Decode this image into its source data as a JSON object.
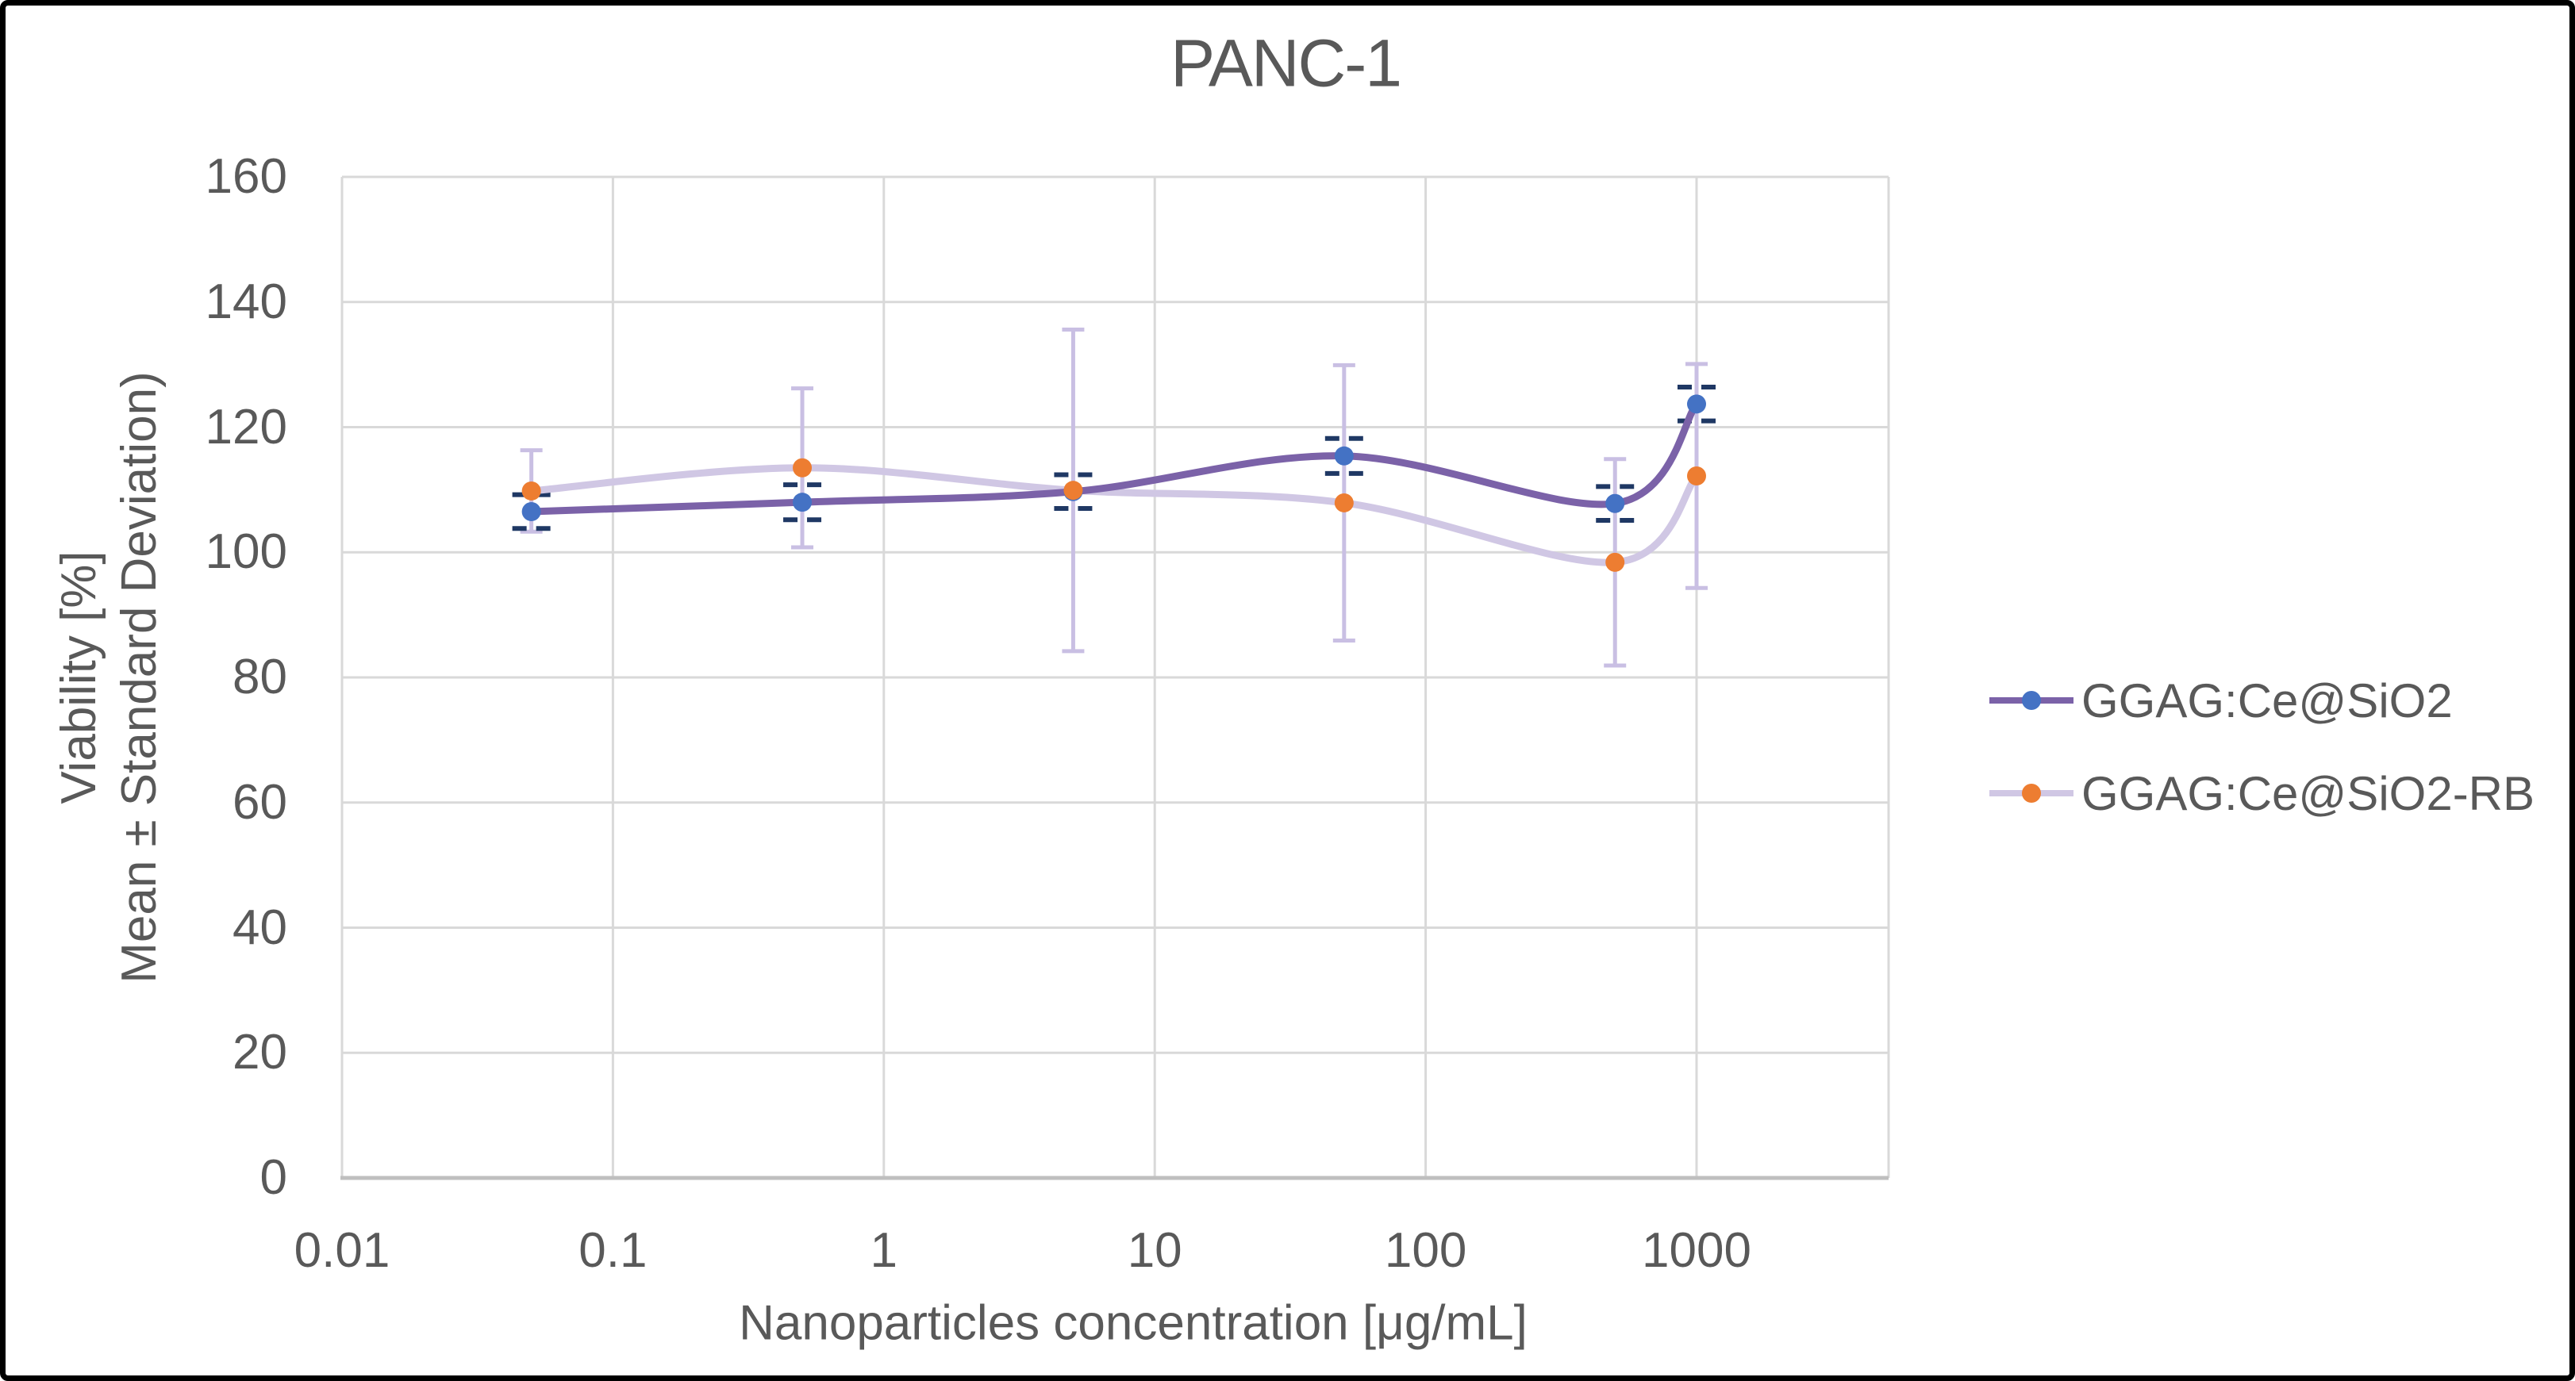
{
  "window": {
    "background": "#FFFFFF",
    "border_color": "#000000"
  },
  "styles": {
    "grid_color": "#D9D9D9",
    "axis_line_color": "#BFBFBF",
    "text_color": "#595959"
  },
  "chart_data": {
    "type": "line",
    "title": "PANC-1",
    "xlabel": "Nanoparticles concentration [μg/mL]",
    "ylabel_line1": "Viability [%]",
    "ylabel_line2": "Mean ± Standard Deviation)",
    "x_scale": "log",
    "xlim": [
      0.01,
      5000
    ],
    "ylim": [
      0,
      160
    ],
    "x_tick_values": [
      0.01,
      0.1,
      1,
      10,
      100,
      1000
    ],
    "x_tick_labels": [
      "0.01",
      "0.1",
      "1",
      "10",
      "100",
      "1000"
    ],
    "y_tick_values": [
      0,
      20,
      40,
      60,
      80,
      100,
      120,
      140,
      160
    ],
    "grid": true,
    "legend_position": "right",
    "x": [
      0.05,
      0.5,
      5,
      50,
      500,
      1000
    ],
    "series": [
      {
        "name": "GGAG:Ce@SiO2",
        "values": [
          106.5,
          108.0,
          109.7,
          115.4,
          107.8,
          123.7
        ],
        "sd": [
          2.7,
          2.8,
          2.7,
          2.8,
          2.7,
          2.7
        ],
        "marker_color": "#4472C4",
        "line_color": "#7B62A8",
        "error_color": "#1F3864",
        "error_bar_style": "dashed-caps-only"
      },
      {
        "name": "GGAG:Ce@SiO2-RB",
        "values": [
          109.8,
          113.5,
          109.9,
          107.9,
          98.4,
          112.2
        ],
        "sd": [
          6.5,
          12.7,
          25.7,
          22.0,
          16.5,
          17.9
        ],
        "marker_color": "#ED7D31",
        "line_color": "#D0C7E4",
        "error_color": "#C9BFE3",
        "error_bar_style": "line-with-caps"
      }
    ]
  }
}
